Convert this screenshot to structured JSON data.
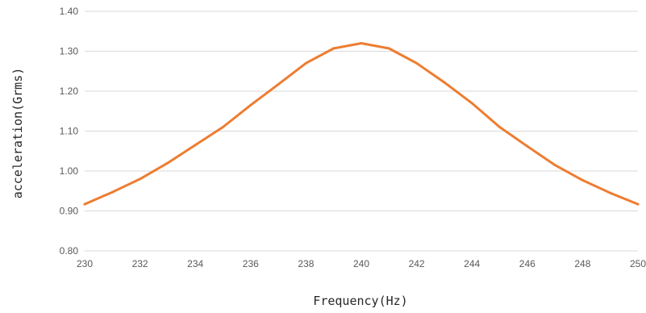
{
  "chart_data": {
    "type": "line",
    "title": "",
    "xlabel": "Frequency(Hz)",
    "ylabel": "acceleration(Grms)",
    "xlim": [
      230,
      250
    ],
    "ylim": [
      0.8,
      1.4
    ],
    "x_ticks": [
      "230",
      "232",
      "234",
      "236",
      "238",
      "240",
      "242",
      "244",
      "246",
      "248",
      "250"
    ],
    "y_ticks": [
      "0.80",
      "0.90",
      "1.00",
      "1.10",
      "1.20",
      "1.30",
      "1.40"
    ],
    "grid": true,
    "legend": "none",
    "series": [
      {
        "color": "#ED7D31",
        "x": [
          230,
          231,
          232,
          233,
          234,
          235,
          236,
          237,
          238,
          239,
          240,
          241,
          242,
          243,
          244,
          245,
          246,
          247,
          248,
          249,
          250
        ],
        "y": [
          0.917,
          0.947,
          0.98,
          1.02,
          1.065,
          1.11,
          1.165,
          1.217,
          1.27,
          1.307,
          1.32,
          1.307,
          1.27,
          1.222,
          1.17,
          1.11,
          1.062,
          1.015,
          0.977,
          0.945,
          0.917
        ]
      }
    ]
  }
}
